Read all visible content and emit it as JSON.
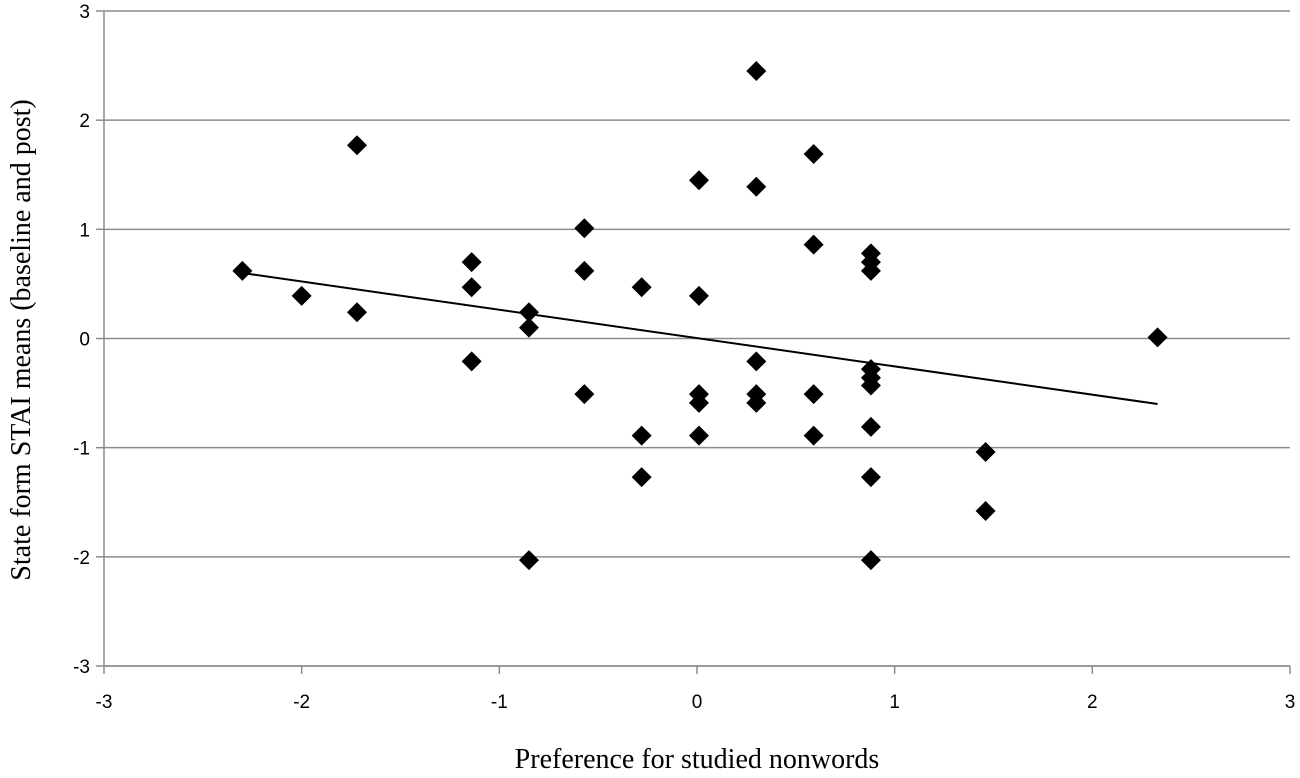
{
  "chart_data": {
    "type": "scatter",
    "title": "",
    "xlabel": "Preference for studied nonwords",
    "ylabel": "State form STAI means (baseline and post)",
    "xlim": [
      -3,
      3
    ],
    "ylim": [
      -3,
      3
    ],
    "xticks": [
      "-3",
      "-2",
      "-1",
      "0",
      "1",
      "2",
      "3"
    ],
    "yticks": [
      "3",
      "2",
      "1",
      "0",
      "-1",
      "-2",
      "-3"
    ],
    "grid": "horizontal",
    "legend": "none",
    "marker": "diamond",
    "marker_color": "#000000",
    "series": [
      {
        "points": [
          [
            -2.3,
            0.62
          ],
          [
            -2.0,
            0.39
          ],
          [
            -1.72,
            1.77
          ],
          [
            -1.72,
            0.24
          ],
          [
            -1.14,
            0.7
          ],
          [
            -1.14,
            0.47
          ],
          [
            -1.14,
            -0.21
          ],
          [
            -0.85,
            0.24
          ],
          [
            -0.85,
            0.1
          ],
          [
            -0.85,
            -2.03
          ],
          [
            -0.57,
            1.01
          ],
          [
            -0.57,
            0.62
          ],
          [
            -0.57,
            -0.51
          ],
          [
            -0.28,
            0.47
          ],
          [
            -0.28,
            -0.89
          ],
          [
            -0.28,
            -1.27
          ],
          [
            0.01,
            1.45
          ],
          [
            0.01,
            0.39
          ],
          [
            0.01,
            -0.51
          ],
          [
            0.01,
            -0.59
          ],
          [
            0.01,
            -0.89
          ],
          [
            0.3,
            2.45
          ],
          [
            0.3,
            1.39
          ],
          [
            0.3,
            -0.21
          ],
          [
            0.3,
            -0.51
          ],
          [
            0.3,
            -0.59
          ],
          [
            0.59,
            1.69
          ],
          [
            0.59,
            0.86
          ],
          [
            0.59,
            -0.51
          ],
          [
            0.59,
            -0.89
          ],
          [
            0.88,
            0.78
          ],
          [
            0.88,
            0.7
          ],
          [
            0.88,
            0.62
          ],
          [
            0.88,
            -0.28
          ],
          [
            0.88,
            -0.36
          ],
          [
            0.88,
            -0.43
          ],
          [
            0.88,
            -0.81
          ],
          [
            0.88,
            -1.27
          ],
          [
            0.88,
            -2.03
          ],
          [
            1.46,
            -1.04
          ],
          [
            1.46,
            -1.58
          ],
          [
            2.33,
            0.01
          ]
        ]
      }
    ],
    "trendline": {
      "x": [
        -2.3,
        2.33
      ],
      "y": [
        0.6,
        -0.6
      ]
    }
  }
}
